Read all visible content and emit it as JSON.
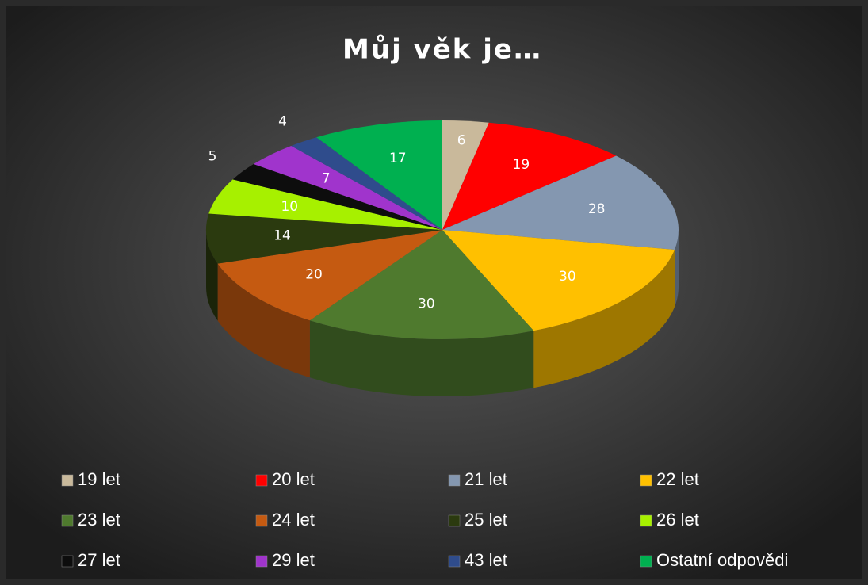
{
  "chart_data": {
    "type": "pie",
    "title": "Můj věk je…",
    "categories": [
      "19 let",
      "20 let",
      "21 let",
      "22 let",
      "23 let",
      "24 let",
      "25 let",
      "26 let",
      "27 let",
      "29 let",
      "43 let",
      "Ostatní odpovědi"
    ],
    "values": [
      6,
      19,
      28,
      30,
      30,
      20,
      14,
      10,
      5,
      7,
      4,
      17
    ],
    "colors": [
      "#c9b99b",
      "#ff0000",
      "#8497b0",
      "#ffc000",
      "#4f7a2e",
      "#c55a11",
      "#2b3a0f",
      "#a7f000",
      "#0d0d0d",
      "#a034cc",
      "#2f4c8c",
      "#00b050"
    ],
    "legend": "bottom"
  }
}
